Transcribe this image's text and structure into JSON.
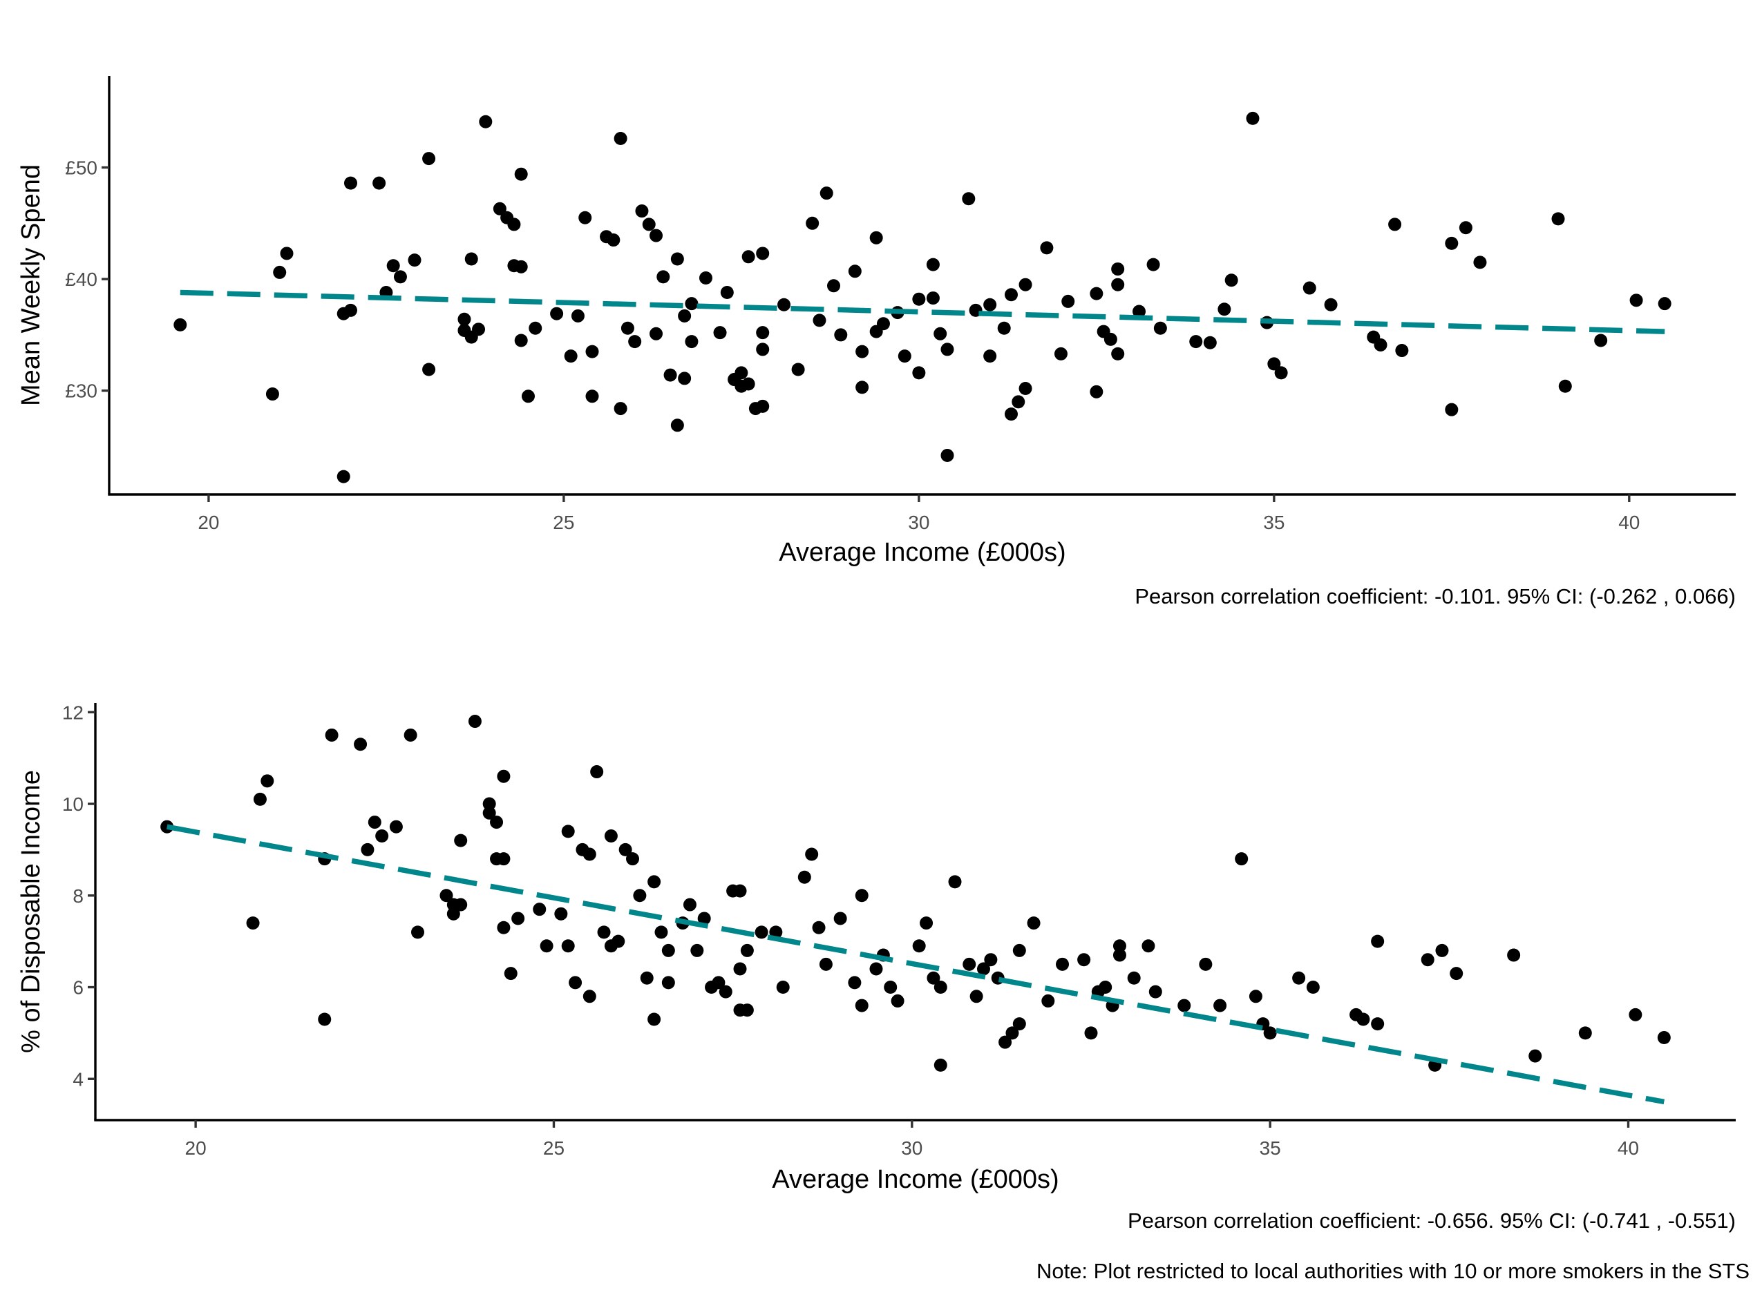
{
  "figure_note": "Note: Plot restricted to local authorities with 10 or more smokers in the STS",
  "colors": {
    "trend_line": "#00868B",
    "points": "#000000",
    "axis": "#000000",
    "tick_text": "#4d4d4d"
  },
  "chart_data": [
    {
      "type": "scatter",
      "title": "",
      "xlabel": "Average Income (£000s)",
      "ylabel": "Mean Weekly Spend",
      "xlim": [
        18.6,
        41.5
      ],
      "ylim": [
        20.7,
        58.2
      ],
      "x_ticks": [
        20,
        25,
        30,
        35,
        40
      ],
      "x_tick_labels": [
        "20",
        "25",
        "30",
        "35",
        "40"
      ],
      "y_ticks": [
        30,
        40,
        50
      ],
      "y_tick_labels": [
        "£30",
        "£40",
        "£50"
      ],
      "grid": false,
      "caption": "Pearson correlation coefficient: -0.101. 95% CI: (-0.262 , 0.066)",
      "trend_line": {
        "x": [
          19.6,
          40.5
        ],
        "y": [
          38.8,
          35.3
        ],
        "style": "dashed"
      },
      "points": [
        [
          19.6,
          35.9
        ],
        [
          20.9,
          29.7
        ],
        [
          21.0,
          40.6
        ],
        [
          21.1,
          42.3
        ],
        [
          21.9,
          22.3
        ],
        [
          21.9,
          36.9
        ],
        [
          22.0,
          48.6
        ],
        [
          22.0,
          37.2
        ],
        [
          22.4,
          48.6
        ],
        [
          22.5,
          38.8
        ],
        [
          22.6,
          41.2
        ],
        [
          22.7,
          40.2
        ],
        [
          22.9,
          41.7
        ],
        [
          23.1,
          50.8
        ],
        [
          23.1,
          31.9
        ],
        [
          23.6,
          36.4
        ],
        [
          23.6,
          35.4
        ],
        [
          23.7,
          34.8
        ],
        [
          23.7,
          41.8
        ],
        [
          23.8,
          35.5
        ],
        [
          23.9,
          54.1
        ],
        [
          24.1,
          46.3
        ],
        [
          24.2,
          45.5
        ],
        [
          24.3,
          44.9
        ],
        [
          24.3,
          41.2
        ],
        [
          24.4,
          49.4
        ],
        [
          24.4,
          41.1
        ],
        [
          24.4,
          34.5
        ],
        [
          24.6,
          35.6
        ],
        [
          24.5,
          29.5
        ],
        [
          24.9,
          36.9
        ],
        [
          25.1,
          33.1
        ],
        [
          25.2,
          36.7
        ],
        [
          25.3,
          45.5
        ],
        [
          25.4,
          33.5
        ],
        [
          25.4,
          29.5
        ],
        [
          25.6,
          43.8
        ],
        [
          25.7,
          43.5
        ],
        [
          25.8,
          28.4
        ],
        [
          25.8,
          52.6
        ],
        [
          25.9,
          35.6
        ],
        [
          26.0,
          34.4
        ],
        [
          26.1,
          46.1
        ],
        [
          26.2,
          44.9
        ],
        [
          26.3,
          35.1
        ],
        [
          26.3,
          43.9
        ],
        [
          26.4,
          40.2
        ],
        [
          26.5,
          31.4
        ],
        [
          26.6,
          41.8
        ],
        [
          26.6,
          26.9
        ],
        [
          26.7,
          36.7
        ],
        [
          26.7,
          31.1
        ],
        [
          26.8,
          34.4
        ],
        [
          26.8,
          37.8
        ],
        [
          27.0,
          40.1
        ],
        [
          27.2,
          35.2
        ],
        [
          27.3,
          38.8
        ],
        [
          27.4,
          31.0
        ],
        [
          27.5,
          30.4
        ],
        [
          27.5,
          31.6
        ],
        [
          27.6,
          42.0
        ],
        [
          27.6,
          30.6
        ],
        [
          27.7,
          28.4
        ],
        [
          27.8,
          42.3
        ],
        [
          27.8,
          35.2
        ],
        [
          27.8,
          33.7
        ],
        [
          27.8,
          28.6
        ],
        [
          28.1,
          37.7
        ],
        [
          28.3,
          31.9
        ],
        [
          28.5,
          45.0
        ],
        [
          28.6,
          36.3
        ],
        [
          28.7,
          47.7
        ],
        [
          28.8,
          39.4
        ],
        [
          28.9,
          35.0
        ],
        [
          29.1,
          40.7
        ],
        [
          29.2,
          33.5
        ],
        [
          29.2,
          30.3
        ],
        [
          29.4,
          43.7
        ],
        [
          29.4,
          35.3
        ],
        [
          29.5,
          36.0
        ],
        [
          29.7,
          37.0
        ],
        [
          29.8,
          33.1
        ],
        [
          30.0,
          31.6
        ],
        [
          30.0,
          38.2
        ],
        [
          30.2,
          41.3
        ],
        [
          30.2,
          38.3
        ],
        [
          30.3,
          35.1
        ],
        [
          30.4,
          33.7
        ],
        [
          30.4,
          24.2
        ],
        [
          30.7,
          47.2
        ],
        [
          30.8,
          37.2
        ],
        [
          31.0,
          37.7
        ],
        [
          31.0,
          33.1
        ],
        [
          31.2,
          35.6
        ],
        [
          31.3,
          27.9
        ],
        [
          31.3,
          38.6
        ],
        [
          31.4,
          29.0
        ],
        [
          31.5,
          39.5
        ],
        [
          31.5,
          30.2
        ],
        [
          31.8,
          42.8
        ],
        [
          32.0,
          33.3
        ],
        [
          32.1,
          38.0
        ],
        [
          32.5,
          38.7
        ],
        [
          32.5,
          29.9
        ],
        [
          32.6,
          35.3
        ],
        [
          32.7,
          34.6
        ],
        [
          32.8,
          40.9
        ],
        [
          32.8,
          39.5
        ],
        [
          32.8,
          33.3
        ],
        [
          33.1,
          37.1
        ],
        [
          33.3,
          41.3
        ],
        [
          33.4,
          35.6
        ],
        [
          33.9,
          34.4
        ],
        [
          34.1,
          34.3
        ],
        [
          34.3,
          37.3
        ],
        [
          34.4,
          39.9
        ],
        [
          34.7,
          54.4
        ],
        [
          34.9,
          36.1
        ],
        [
          35.0,
          32.4
        ],
        [
          35.1,
          31.6
        ],
        [
          35.5,
          39.2
        ],
        [
          35.8,
          37.7
        ],
        [
          36.4,
          34.8
        ],
        [
          36.5,
          34.1
        ],
        [
          36.7,
          44.9
        ],
        [
          36.8,
          33.6
        ],
        [
          37.5,
          43.2
        ],
        [
          37.5,
          28.3
        ],
        [
          37.7,
          44.6
        ],
        [
          37.9,
          41.5
        ],
        [
          39.0,
          45.4
        ],
        [
          39.1,
          30.4
        ],
        [
          39.6,
          34.5
        ],
        [
          40.1,
          38.1
        ],
        [
          40.5,
          37.8
        ]
      ]
    },
    {
      "type": "scatter",
      "title": "",
      "xlabel": "Average Income (£000s)",
      "ylabel": "% of Disposable Income",
      "xlim": [
        18.6,
        41.5
      ],
      "ylim": [
        3.1,
        12.2
      ],
      "x_ticks": [
        20,
        25,
        30,
        35,
        40
      ],
      "x_tick_labels": [
        "20",
        "25",
        "30",
        "35",
        "40"
      ],
      "y_ticks": [
        4,
        6,
        8,
        10,
        12
      ],
      "y_tick_labels": [
        "4",
        "6",
        "8",
        "10",
        "12"
      ],
      "grid": false,
      "caption": "Pearson correlation coefficient: -0.656. 95% CI: (-0.741 , -0.551)",
      "trend_line": {
        "x": [
          19.6,
          40.5
        ],
        "y": [
          9.5,
          3.5
        ],
        "style": "dashed"
      },
      "points": [
        [
          19.6,
          9.5
        ],
        [
          20.8,
          7.4
        ],
        [
          20.9,
          10.1
        ],
        [
          21.0,
          10.5
        ],
        [
          21.8,
          8.8
        ],
        [
          21.8,
          5.3
        ],
        [
          21.9,
          11.5
        ],
        [
          22.3,
          11.3
        ],
        [
          22.4,
          9.0
        ],
        [
          22.5,
          9.6
        ],
        [
          22.6,
          9.3
        ],
        [
          22.8,
          9.5
        ],
        [
          23.0,
          11.5
        ],
        [
          23.1,
          7.2
        ],
        [
          23.5,
          8.0
        ],
        [
          23.6,
          7.8
        ],
        [
          23.6,
          7.6
        ],
        [
          23.7,
          9.2
        ],
        [
          23.7,
          7.8
        ],
        [
          23.9,
          11.8
        ],
        [
          24.1,
          10.0
        ],
        [
          24.1,
          9.8
        ],
        [
          24.2,
          9.6
        ],
        [
          24.2,
          8.8
        ],
        [
          24.3,
          8.8
        ],
        [
          24.3,
          10.6
        ],
        [
          24.3,
          7.3
        ],
        [
          24.4,
          6.3
        ],
        [
          24.5,
          7.5
        ],
        [
          24.8,
          7.7
        ],
        [
          24.9,
          6.9
        ],
        [
          25.1,
          7.6
        ],
        [
          25.2,
          9.4
        ],
        [
          25.2,
          6.9
        ],
        [
          25.3,
          6.1
        ],
        [
          25.4,
          9.0
        ],
        [
          25.5,
          8.9
        ],
        [
          25.5,
          5.8
        ],
        [
          25.6,
          10.7
        ],
        [
          25.7,
          7.2
        ],
        [
          25.8,
          6.9
        ],
        [
          25.8,
          9.3
        ],
        [
          25.9,
          7.0
        ],
        [
          26.0,
          9.0
        ],
        [
          26.1,
          8.8
        ],
        [
          26.2,
          8.0
        ],
        [
          26.3,
          6.2
        ],
        [
          26.4,
          5.3
        ],
        [
          26.4,
          8.3
        ],
        [
          26.5,
          7.2
        ],
        [
          26.6,
          6.1
        ],
        [
          26.6,
          6.8
        ],
        [
          26.8,
          7.4
        ],
        [
          26.9,
          7.8
        ],
        [
          27.0,
          6.8
        ],
        [
          27.1,
          7.5
        ],
        [
          27.2,
          6.0
        ],
        [
          27.3,
          6.1
        ],
        [
          27.4,
          5.9
        ],
        [
          27.5,
          8.1
        ],
        [
          27.6,
          8.1
        ],
        [
          27.6,
          6.4
        ],
        [
          27.6,
          5.5
        ],
        [
          27.7,
          6.8
        ],
        [
          27.7,
          5.5
        ],
        [
          27.9,
          7.2
        ],
        [
          28.1,
          7.2
        ],
        [
          28.2,
          6.0
        ],
        [
          28.5,
          8.4
        ],
        [
          28.6,
          8.9
        ],
        [
          28.7,
          7.3
        ],
        [
          28.8,
          6.5
        ],
        [
          29.0,
          7.5
        ],
        [
          29.2,
          6.1
        ],
        [
          29.3,
          5.6
        ],
        [
          29.3,
          8.0
        ],
        [
          29.5,
          6.4
        ],
        [
          29.6,
          6.7
        ],
        [
          29.7,
          6.0
        ],
        [
          29.8,
          5.7
        ],
        [
          30.1,
          6.9
        ],
        [
          30.2,
          7.4
        ],
        [
          30.3,
          6.2
        ],
        [
          30.4,
          6.0
        ],
        [
          30.4,
          4.3
        ],
        [
          30.6,
          8.3
        ],
        [
          30.8,
          6.5
        ],
        [
          30.9,
          5.8
        ],
        [
          31.0,
          6.4
        ],
        [
          31.1,
          6.6
        ],
        [
          31.2,
          6.2
        ],
        [
          31.3,
          4.8
        ],
        [
          31.4,
          5.0
        ],
        [
          31.5,
          6.8
        ],
        [
          31.5,
          5.2
        ],
        [
          31.7,
          7.4
        ],
        [
          31.9,
          5.7
        ],
        [
          32.1,
          6.5
        ],
        [
          32.4,
          6.6
        ],
        [
          32.5,
          5.0
        ],
        [
          32.6,
          5.9
        ],
        [
          32.7,
          6.0
        ],
        [
          32.8,
          5.6
        ],
        [
          32.9,
          6.9
        ],
        [
          32.9,
          6.7
        ],
        [
          33.1,
          6.2
        ],
        [
          33.3,
          6.9
        ],
        [
          33.4,
          5.9
        ],
        [
          33.8,
          5.6
        ],
        [
          34.1,
          6.5
        ],
        [
          34.3,
          5.6
        ],
        [
          34.6,
          8.8
        ],
        [
          34.8,
          5.8
        ],
        [
          34.9,
          5.2
        ],
        [
          35.0,
          5.0
        ],
        [
          35.4,
          6.2
        ],
        [
          35.6,
          6.0
        ],
        [
          36.2,
          5.4
        ],
        [
          36.3,
          5.3
        ],
        [
          36.5,
          7.0
        ],
        [
          36.5,
          5.2
        ],
        [
          37.2,
          6.6
        ],
        [
          37.3,
          4.3
        ],
        [
          37.4,
          6.8
        ],
        [
          37.6,
          6.3
        ],
        [
          38.4,
          6.7
        ],
        [
          38.7,
          4.5
        ],
        [
          39.4,
          5.0
        ],
        [
          40.1,
          5.4
        ],
        [
          40.5,
          4.9
        ]
      ]
    }
  ]
}
